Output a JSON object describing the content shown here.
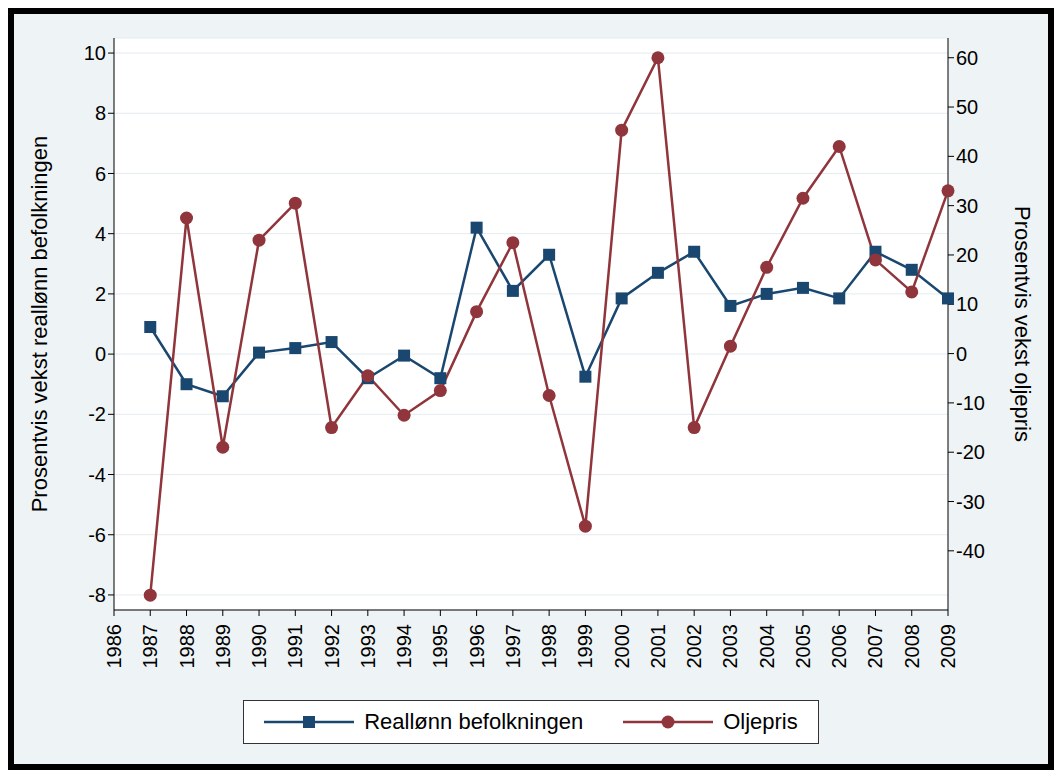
{
  "chart_data": {
    "type": "line",
    "categories": [
      "1986",
      "1987",
      "1988",
      "1989",
      "1990",
      "1991",
      "1992",
      "1993",
      "1994",
      "1995",
      "1996",
      "1997",
      "1998",
      "1999",
      "2000",
      "2001",
      "2002",
      "2003",
      "2004",
      "2005",
      "2006",
      "2007",
      "2008",
      "2009"
    ],
    "y_label": "Prosentvis vekst reallønn befolkningen",
    "y2_label": "Prosentvis vekst oljepris",
    "ylim": [
      -8.5,
      10.5
    ],
    "yticks": [
      -8,
      -6,
      -4,
      -2,
      0,
      2,
      4,
      6,
      8,
      10
    ],
    "y2lim": [
      -52,
      64
    ],
    "y2ticks": [
      -40,
      -30,
      -20,
      -10,
      0,
      10,
      20,
      30,
      40,
      50,
      60
    ],
    "grid": true,
    "legend": "bottom",
    "series": [
      {
        "name": "Reallønn befolkningen",
        "color": "#1a476f",
        "marker": "square",
        "values": [
          null,
          0.9,
          -1.0,
          -1.4,
          0.05,
          0.2,
          0.4,
          -0.8,
          -0.05,
          -0.8,
          4.2,
          2.1,
          3.3,
          -0.75,
          1.85,
          2.7,
          3.4,
          1.6,
          2.0,
          2.2,
          1.85,
          3.4,
          2.8,
          1.85
        ]
      },
      {
        "name": "Oljepris",
        "color": "#90353b",
        "marker": "circle",
        "axis": "y2",
        "values": [
          null,
          -49,
          27.5,
          -19,
          23,
          30.5,
          -15,
          -4.5,
          -12.5,
          -7.5,
          8.5,
          22.5,
          -8.5,
          -35,
          45.3,
          60,
          -15,
          1.5,
          17.5,
          31.5,
          42,
          19,
          12.5,
          33
        ]
      }
    ]
  }
}
